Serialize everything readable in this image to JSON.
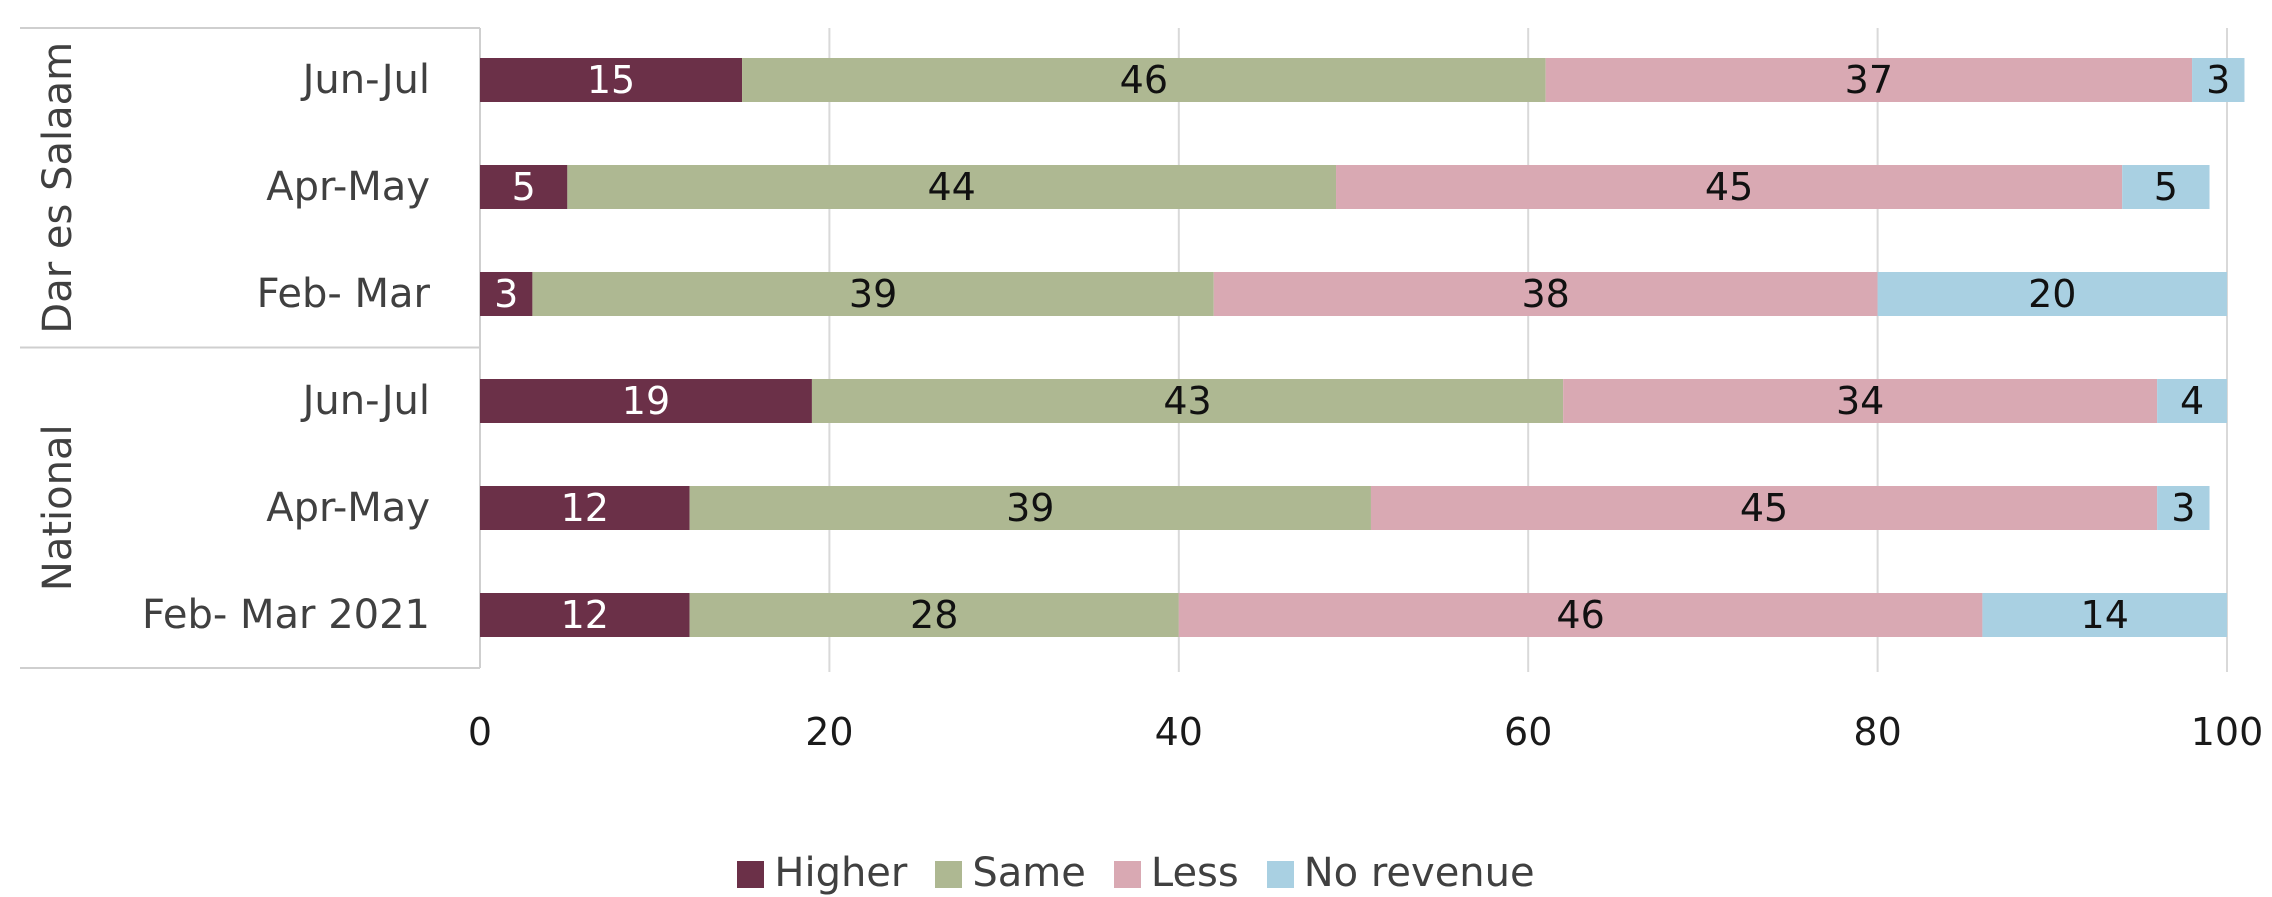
{
  "chart_data": {
    "type": "bar",
    "orientation": "horizontal",
    "stacked": true,
    "title": "",
    "xlabel": "",
    "ylabel": "",
    "xlim": [
      0,
      100
    ],
    "xticks": [
      0,
      20,
      40,
      60,
      80,
      100
    ],
    "grid": "vertical",
    "legend_position": "bottom",
    "groups": [
      {
        "name": "Dar es Salaam",
        "categories": [
          "Jun-Jul",
          "Apr-May",
          "Feb- Mar"
        ]
      },
      {
        "name": "National",
        "categories": [
          "Jun-Jul",
          "Apr-May",
          "Feb- Mar 2021"
        ]
      }
    ],
    "series": [
      {
        "name": "Higher",
        "color": "#6B3048",
        "label_color": "#ffffff",
        "values": [
          15,
          5,
          3,
          19,
          12,
          12
        ]
      },
      {
        "name": "Same",
        "color": "#AEB892",
        "label_color": "#111111",
        "values": [
          46,
          44,
          39,
          43,
          39,
          28
        ]
      },
      {
        "name": "Less",
        "color": "#D9A9B3",
        "label_color": "#111111",
        "values": [
          37,
          45,
          38,
          34,
          45,
          46
        ]
      },
      {
        "name": "No revenue",
        "color": "#A9D0E2",
        "label_color": "#111111",
        "values": [
          3,
          5,
          20,
          4,
          3,
          14
        ]
      }
    ]
  }
}
